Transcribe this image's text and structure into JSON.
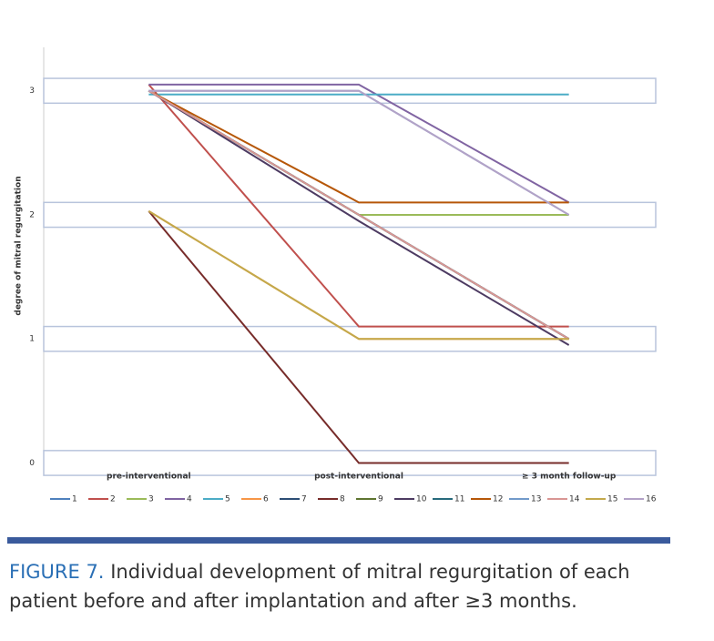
{
  "chart_data": {
    "type": "line",
    "y_label": "degree of mitral regurgitation",
    "categories": [
      "pre-interventional",
      "post-interventional",
      "≥ 3 month follow-up"
    ],
    "ylim": [
      -0.07,
      3.35
    ],
    "yticks": [
      0,
      1,
      2,
      3
    ],
    "series": [
      {
        "name": "1",
        "color": "#4f81bd",
        "values": [
          3,
          2,
          1
        ]
      },
      {
        "name": "2",
        "color": "#c0504d",
        "values": [
          3.05,
          1.1,
          1.1
        ]
      },
      {
        "name": "3",
        "color": "#9bbb59",
        "values": [
          3,
          2,
          2
        ]
      },
      {
        "name": "4",
        "color": "#8064a2",
        "values": [
          3.05,
          3.05,
          2.1
        ]
      },
      {
        "name": "5",
        "color": "#4bacc6",
        "values": [
          2.97,
          2.97,
          2.97
        ]
      },
      {
        "name": "6",
        "color": "#f79646",
        "values": [
          2.03,
          1,
          1
        ]
      },
      {
        "name": "7",
        "color": "#2c4d75",
        "values": [
          3,
          2,
          1
        ]
      },
      {
        "name": "8",
        "color": "#772c2a",
        "values": [
          2.03,
          0,
          0
        ]
      },
      {
        "name": "9",
        "color": "#5f7530",
        "values": [
          3,
          2,
          1
        ]
      },
      {
        "name": "10",
        "color": "#4d3b62",
        "values": [
          3,
          1.95,
          0.95
        ]
      },
      {
        "name": "11",
        "color": "#276a7c",
        "values": [
          3,
          2,
          1
        ]
      },
      {
        "name": "12",
        "color": "#b65708",
        "values": [
          3,
          2.1,
          2.1
        ]
      },
      {
        "name": "13",
        "color": "#729aca",
        "values": [
          3,
          3,
          2
        ]
      },
      {
        "name": "14",
        "color": "#d99694",
        "values": [
          3,
          2,
          1
        ]
      },
      {
        "name": "15",
        "color": "#c3a94b",
        "values": [
          2.03,
          1,
          1
        ]
      },
      {
        "name": "16",
        "color": "#b3a2c7",
        "values": [
          3,
          3,
          2
        ]
      }
    ]
  },
  "caption_label": "FIGURE 7.",
  "caption": "Individual development of mitral regurgitation of each patient before and after implantation and after ≥3 months."
}
